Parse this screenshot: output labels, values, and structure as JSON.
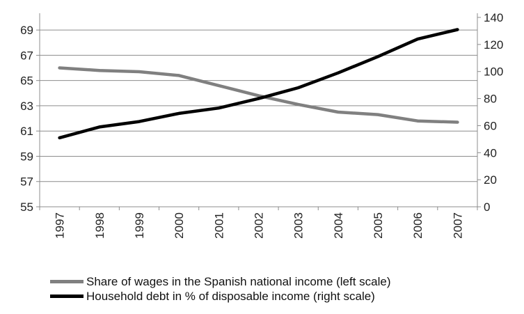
{
  "chart_data": {
    "type": "line",
    "title": "",
    "xlabel": "",
    "ylabel": "",
    "x": [
      "1997",
      "1998",
      "1999",
      "2000",
      "2001",
      "2002",
      "2003",
      "2004",
      "2005",
      "2006",
      "2007"
    ],
    "x_tick_rotation": "vertical",
    "y_left": {
      "ylim": [
        55,
        70
      ],
      "ticks": [
        55,
        57,
        59,
        61,
        63,
        65,
        67,
        69
      ]
    },
    "y_right": {
      "ylim": [
        0,
        140
      ],
      "ticks": [
        0,
        20,
        40,
        60,
        80,
        100,
        120,
        140
      ]
    },
    "grid": "horizontal",
    "legend_position": "bottom",
    "series": [
      {
        "name": "Share of wages in the Spanish national income (left scale)",
        "axis": "left",
        "color": "#808080",
        "values": [
          66.0,
          65.8,
          65.7,
          65.4,
          64.6,
          63.8,
          63.1,
          62.5,
          62.3,
          61.8,
          61.7
        ]
      },
      {
        "name": "Household debt in % of disposable income (right scale)",
        "axis": "right",
        "color": "#000000",
        "values": [
          51,
          59,
          63,
          69,
          73,
          80,
          88,
          99,
          111,
          124,
          131
        ]
      }
    ]
  }
}
